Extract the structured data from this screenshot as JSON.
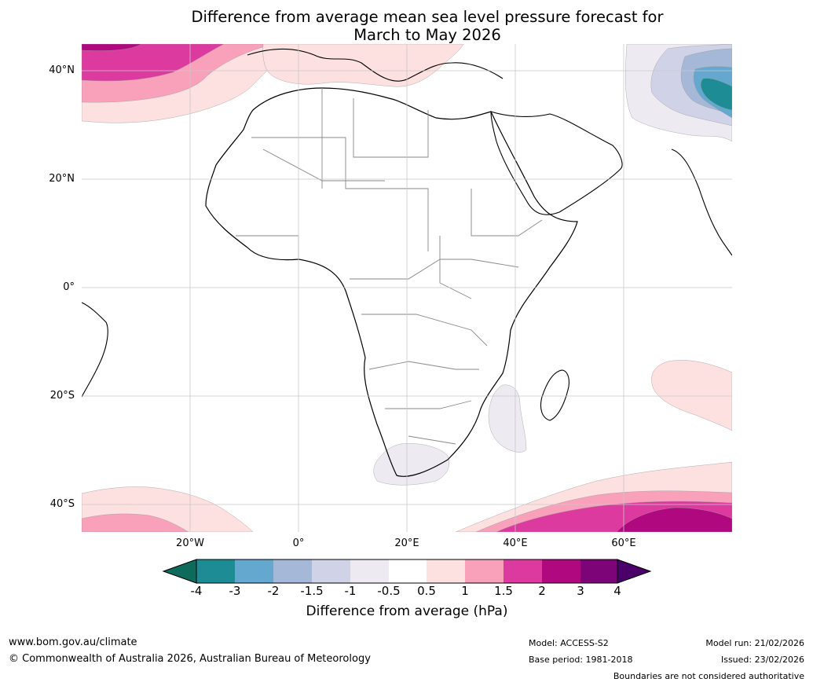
{
  "title": {
    "line1": "Difference from average mean sea level pressure forecast for",
    "line2": "March to May 2026"
  },
  "axes": {
    "lat_labels": [
      "40°N",
      "20°N",
      "0°",
      "20°S",
      "40°S"
    ],
    "lat_values": [
      40,
      20,
      0,
      -20,
      -40
    ],
    "lon_labels": [
      "20°W",
      "0°",
      "20°E",
      "40°E",
      "60°E"
    ],
    "lon_values": [
      -20,
      0,
      20,
      40,
      60
    ],
    "lon_range": [
      -40,
      80
    ],
    "lat_range": [
      -45,
      45
    ]
  },
  "colorbar": {
    "ticks": [
      "-4",
      "-3",
      "-2",
      "-1.5",
      "-1",
      "-0.5",
      "0.5",
      "1",
      "1.5",
      "2",
      "3",
      "4"
    ],
    "colors": [
      "#1e8c95",
      "#64a8d0",
      "#a6b8d8",
      "#d0d3e8",
      "#eeeaf2",
      "#ffffff",
      "#fde0e0",
      "#f9a0bb",
      "#dd3aa0",
      "#b0087e",
      "#7c0478"
    ],
    "low_extend_color": "#0e6a5a",
    "high_extend_color": "#4a0068",
    "label": "Difference from average (hPa)"
  },
  "legend_colors": {
    "pos_05_1": "#fde0e0",
    "pos_1_15": "#f9a0bb",
    "pos_15_2": "#dd3aa0",
    "pos_2_3": "#b0087e",
    "neg_05_1": "#eeeaf2",
    "neg_1_15": "#d0d3e8",
    "neg_15_2": "#a6b8d8",
    "neg_2_3": "#64a8d0",
    "neg_3_4": "#1e8c95"
  },
  "footer": {
    "website": "www.bom.gov.au/climate",
    "copyright": "© Commonwealth of Australia 2026, Australian Bureau of Meteorology",
    "model": "Model: ACCESS-S2",
    "base_period": "Base period: 1981-2018",
    "model_run": "Model run: 21/02/2026",
    "issued": "Issued: 23/02/2026",
    "disclaimer": "Boundaries are not considered authoritative"
  }
}
